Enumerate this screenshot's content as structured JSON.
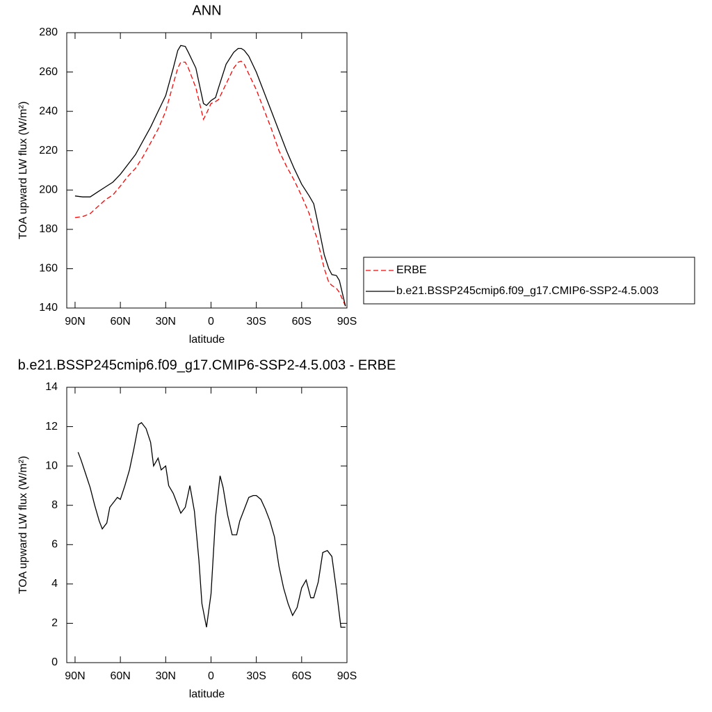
{
  "chart_data": [
    {
      "type": "line",
      "title": "ANN",
      "x_label": "latitude",
      "y_label": "TOA upward LW flux (W/m²)",
      "x": [
        90,
        85,
        80,
        75,
        70,
        65,
        60,
        55,
        50,
        45,
        40,
        35,
        30,
        25,
        22,
        20,
        17,
        15,
        10,
        5,
        3,
        0,
        -3,
        -5,
        -10,
        -15,
        -18,
        -20,
        -22,
        -25,
        -30,
        -35,
        -40,
        -45,
        -50,
        -55,
        -60,
        -65,
        -68,
        -70,
        -75,
        -78,
        -80,
        -83,
        -85,
        -89
      ],
      "series": [
        {
          "name": "ERBE",
          "color": "#ff0000",
          "line_style": "dashed",
          "values": [
            186,
            186.5,
            188,
            191.5,
            195,
            197.5,
            202,
            207,
            211,
            217,
            224,
            231,
            240,
            254,
            262,
            265,
            265,
            262,
            252,
            236,
            239,
            244,
            245,
            246,
            254,
            262,
            265,
            265.5,
            264,
            259,
            251,
            241,
            231,
            220,
            212,
            205,
            197,
            188,
            180,
            176,
            160,
            153,
            151.5,
            150,
            148,
            141
          ]
        },
        {
          "name": "b.e21.BSSP245cmip6.f09_g17.CMIP6-SSP2-4.5.003",
          "color": "#000000",
          "line_style": "solid",
          "values": [
            197,
            196.5,
            196.5,
            199,
            201.5,
            204,
            208,
            213,
            218,
            225,
            232,
            240,
            248,
            262,
            271,
            273.5,
            273,
            270,
            262,
            244,
            243,
            245.5,
            247,
            252,
            264,
            270,
            272,
            272,
            271,
            268,
            260,
            250,
            240,
            230,
            220,
            211,
            203,
            197,
            193,
            186,
            167,
            160,
            157,
            156.5,
            154,
            141
          ]
        }
      ],
      "xlim": [
        95.5,
        -90
      ],
      "ylim": [
        140,
        280
      ],
      "xticks": [
        {
          "value": 90,
          "label": "90N"
        },
        {
          "value": 60,
          "label": "60N"
        },
        {
          "value": 30,
          "label": "30N"
        },
        0,
        {
          "value": -30,
          "label": "30S"
        },
        {
          "value": -60,
          "label": "60S"
        },
        {
          "value": -90,
          "label": "90S"
        }
      ],
      "yticks": [
        140,
        160,
        180,
        200,
        220,
        240,
        260,
        280
      ],
      "legend": "right"
    },
    {
      "type": "line",
      "title": "b.e21.BSSP245cmip6.f09_g17.CMIP6-SSP2-4.5.003 - ERBE",
      "x_label": "latitude",
      "y_label": "TOA upward LW flux (W/m²)",
      "x": [
        88,
        86,
        83,
        80,
        77,
        74,
        72,
        69,
        67,
        64,
        62,
        60,
        57,
        54,
        51,
        48,
        46,
        43,
        40,
        38,
        35,
        33,
        30,
        28,
        25,
        22,
        20,
        17,
        14,
        11,
        8,
        6,
        3,
        0,
        -3,
        -6,
        -8,
        -11,
        -14,
        -17,
        -19,
        -22,
        -25,
        -28,
        -30,
        -33,
        -36,
        -39,
        -42,
        -45,
        -48,
        -51,
        -54,
        -57,
        -60,
        -63,
        -66,
        -68,
        -71,
        -74,
        -77,
        -80,
        -83,
        -86,
        -89
      ],
      "series": [
        {
          "color": "#000000",
          "line_style": "solid",
          "values": [
            10.7,
            10.3,
            9.6,
            8.9,
            8.0,
            7.2,
            6.8,
            7.1,
            7.9,
            8.2,
            8.4,
            8.3,
            9.0,
            9.8,
            10.9,
            12.1,
            12.2,
            11.9,
            11.2,
            10.0,
            10.4,
            9.8,
            10.0,
            9.0,
            8.6,
            8.0,
            7.6,
            7.9,
            9.0,
            7.7,
            5.2,
            3.0,
            1.8,
            3.5,
            7.4,
            9.5,
            8.9,
            7.5,
            6.5,
            6.5,
            7.2,
            7.8,
            8.4,
            8.5,
            8.5,
            8.3,
            7.8,
            7.2,
            6.4,
            4.9,
            3.8,
            3.0,
            2.4,
            2.8,
            3.8,
            4.2,
            3.3,
            3.3,
            4.1,
            5.6,
            5.7,
            5.4,
            3.7,
            1.8,
            1.8
          ]
        }
      ],
      "xlim": [
        95.5,
        -90
      ],
      "ylim": [
        0,
        14
      ],
      "xticks": [
        {
          "value": 90,
          "label": "90N"
        },
        {
          "value": 60,
          "label": "60N"
        },
        {
          "value": 30,
          "label": "30N"
        },
        0,
        {
          "value": -30,
          "label": "30S"
        },
        {
          "value": -60,
          "label": "60S"
        },
        {
          "value": -90,
          "label": "90S"
        }
      ],
      "yticks": [
        0,
        2,
        4,
        6,
        8,
        10,
        12,
        14
      ]
    }
  ]
}
